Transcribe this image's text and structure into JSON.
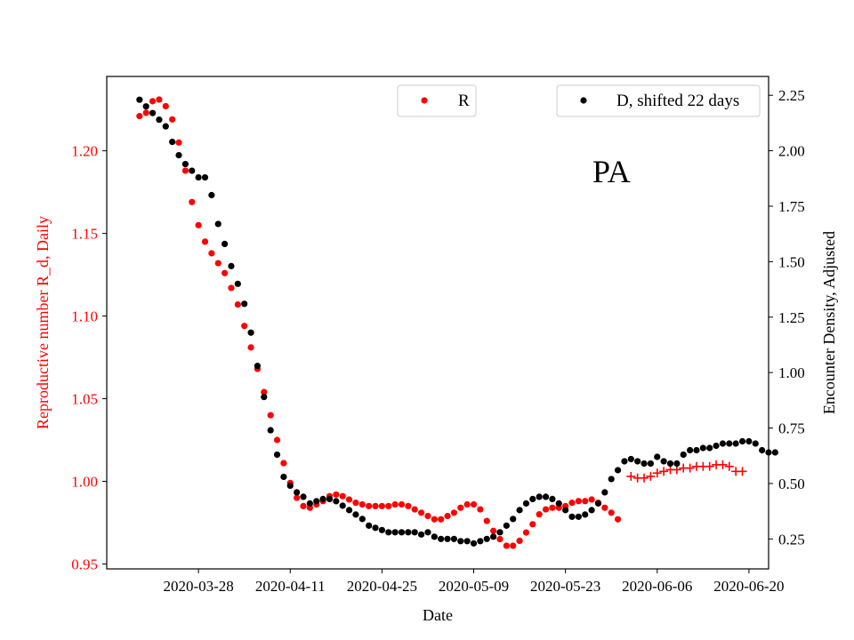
{
  "chart_data": {
    "type": "scatter",
    "annotation": "PA",
    "xlabel": "Date",
    "ylabel_left": "Reproductive number R_d, Daily",
    "ylabel_right": "Encounter Density, Adjusted",
    "x_tick_labels": [
      "2020-03-28",
      "2020-04-11",
      "2020-04-25",
      "2020-05-09",
      "2020-05-23",
      "2020-06-06",
      "2020-06-20"
    ],
    "x_range": [
      "2020-03-14",
      "2020-06-23"
    ],
    "ylim_left": [
      0.947,
      1.245
    ],
    "ylim_right": [
      0.115,
      2.335
    ],
    "left_ticks": [
      "0.95",
      "1.00",
      "1.05",
      "1.10",
      "1.15",
      "1.20"
    ],
    "right_ticks": [
      "0.25",
      "0.50",
      "0.75",
      "1.00",
      "1.25",
      "1.50",
      "1.75",
      "2.00",
      "2.25"
    ],
    "legend_left": {
      "label": "R",
      "position": "top-center"
    },
    "legend_right": {
      "label": "D, shifted 22 days",
      "position": "top-right"
    },
    "colors": {
      "R": "#ff0000",
      "D": "#000000",
      "left_axis": "#ff0000"
    },
    "series": [
      {
        "name": "R",
        "axis": "left",
        "marker": "dot",
        "start_date": "2020-03-19",
        "values": [
          1.221,
          1.223,
          1.23,
          1.231,
          1.227,
          1.219,
          1.205,
          1.188,
          1.169,
          1.155,
          1.145,
          1.138,
          1.132,
          1.126,
          1.117,
          1.107,
          1.094,
          1.081,
          1.068,
          1.054,
          1.04,
          1.025,
          1.011,
          0.999,
          0.99,
          0.985,
          0.984,
          0.986,
          0.988,
          0.991,
          0.992,
          0.991,
          0.989,
          0.987,
          0.986,
          0.985,
          0.985,
          0.985,
          0.985,
          0.986,
          0.986,
          0.985,
          0.983,
          0.981,
          0.979,
          0.977,
          0.977,
          0.979,
          0.981,
          0.984,
          0.986,
          0.986,
          0.983,
          0.976,
          0.97,
          0.965,
          0.961,
          0.961,
          0.964,
          0.969,
          0.974,
          0.98,
          0.983,
          0.984,
          0.984,
          0.985,
          0.987,
          0.988,
          0.988,
          0.989,
          0.987,
          0.984,
          0.981,
          0.977
        ]
      },
      {
        "name": "R",
        "axis": "left",
        "marker": "plus",
        "start_date": "2020-06-02",
        "values": [
          1.003,
          1.002,
          1.002,
          1.003,
          1.005,
          1.006,
          1.007,
          1.007,
          1.008,
          1.008,
          1.009,
          1.009,
          1.009,
          1.01,
          1.01,
          1.009,
          1.006,
          1.006
        ]
      },
      {
        "name": "D, shifted 22 days",
        "axis": "right",
        "marker": "dot",
        "start_date": "2020-03-19",
        "values": [
          2.23,
          2.2,
          2.17,
          2.14,
          2.11,
          2.04,
          1.98,
          1.94,
          1.91,
          1.88,
          1.88,
          1.8,
          1.67,
          1.58,
          1.48,
          1.4,
          1.31,
          1.18,
          1.03,
          0.89,
          0.74,
          0.63,
          0.53,
          0.49,
          0.46,
          0.44,
          0.41,
          0.42,
          0.43,
          0.43,
          0.42,
          0.4,
          0.38,
          0.36,
          0.34,
          0.31,
          0.3,
          0.29,
          0.28,
          0.28,
          0.28,
          0.28,
          0.28,
          0.27,
          0.28,
          0.26,
          0.25,
          0.25,
          0.25,
          0.24,
          0.24,
          0.23,
          0.24,
          0.25,
          0.26,
          0.28,
          0.31,
          0.34,
          0.38,
          0.41,
          0.43,
          0.44,
          0.44,
          0.43,
          0.41,
          0.38,
          0.35,
          0.35,
          0.36,
          0.38,
          0.41,
          0.46,
          0.52,
          0.56,
          0.6,
          0.61,
          0.6,
          0.59,
          0.59,
          0.62,
          0.6,
          0.59,
          0.59,
          0.63,
          0.65,
          0.65,
          0.66,
          0.66,
          0.67,
          0.68,
          0.68,
          0.68,
          0.69,
          0.69,
          0.68,
          0.65,
          0.64,
          0.64
        ]
      }
    ]
  }
}
